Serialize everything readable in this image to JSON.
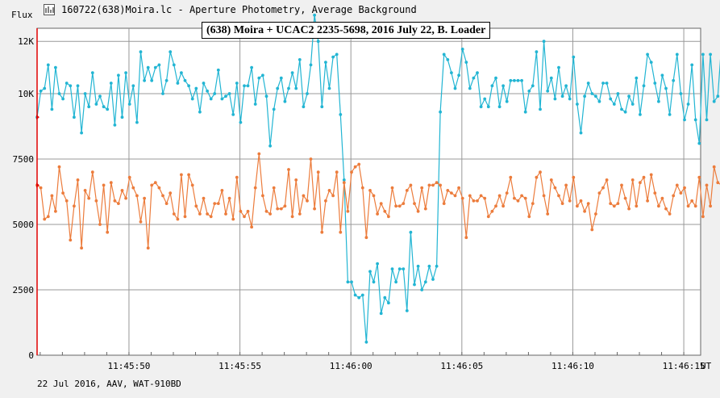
{
  "window": {
    "title": "160722(638)Moira.lc - Aperture Photometry, Average Background",
    "app_icon": "chart-icon"
  },
  "footer": {
    "note": "22 Jul 2016, AAV, WAT-910BD"
  },
  "colors": {
    "series_cyan": "#22b5d3",
    "series_orange": "#ec7c3c",
    "axis_marker": "#e00000",
    "grid": "#999999"
  },
  "chart_data": {
    "type": "line",
    "title": "(638) Moira + UCAC2 2235-5698, 2016 July 22, B. Loader",
    "y_unit": "Flux",
    "x_unit": "UT",
    "y_ticks": [
      0,
      2500,
      5000,
      7500,
      10000,
      12000
    ],
    "y_tick_labels": [
      "0",
      "2500",
      "5000",
      "7500",
      "10K",
      "12K"
    ],
    "ylim": [
      0,
      12500
    ],
    "x_ticks": [
      50,
      55,
      60,
      65,
      70,
      75
    ],
    "x_tick_labels": [
      "11:45:50",
      "11:45:55",
      "11:46:00",
      "11:46:05",
      "11:46:10",
      "11:46:15"
    ],
    "xlim": [
      45.86,
      75.76
    ],
    "x_start": 45.86,
    "x_step": 0.1667,
    "grid": true,
    "series": [
      {
        "values": [
          9100,
          10100,
          10200,
          11100,
          9400,
          11000,
          10000,
          9800,
          10400,
          10300,
          9100,
          10300,
          8500,
          10000,
          9500,
          10800,
          9600,
          9900,
          9500,
          9400,
          10400,
          8800,
          10700,
          9100,
          10800,
          9600,
          10300,
          8900,
          11600,
          10500,
          11000,
          10500,
          11000,
          11100,
          10000,
          10500,
          11600,
          11100,
          10400,
          10800,
          10500,
          10300,
          9800,
          10200,
          9300,
          10400,
          10100,
          9800,
          10000,
          10900,
          9800,
          9900,
          10000,
          9200,
          10400,
          8900,
          10300,
          10300,
          11000,
          9600,
          10600,
          10700,
          9900,
          8000,
          9400,
          10200,
          10600,
          9700,
          10200,
          10800,
          10200,
          11300,
          9500,
          10000,
          11100,
          13000,
          12000,
          9500,
          11200,
          10200,
          11400,
          11500,
          9200,
          6700,
          2800,
          2800,
          2300,
          2200,
          2300,
          500,
          3200,
          2800,
          3500,
          1600,
          2200,
          2000,
          3300,
          2800,
          3300,
          3300,
          1700,
          4700,
          2700,
          3400,
          2500,
          2800,
          3400,
          2900,
          3400,
          9300,
          11500,
          11300,
          10800,
          10200,
          10700,
          11700,
          11200,
          10200,
          10600,
          10800,
          9500,
          9800,
          9500,
          10300,
          10600,
          9500,
          10300,
          9700,
          10500,
          10500,
          10500,
          10500,
          9300,
          10100,
          10300,
          11600,
          9400,
          12000,
          10100,
          10600,
          9800,
          11000,
          9900,
          10300,
          9800,
          11400,
          9600,
          8500,
          9900,
          10400,
          10000,
          9900,
          9700,
          10400,
          10400,
          9800,
          9600,
          10000,
          9400,
          9300,
          9900,
          9600,
          10600,
          9200,
          10300,
          11500,
          11200,
          10400,
          9700,
          10700,
          10200,
          9200,
          10500,
          11500,
          10000,
          9000,
          9600,
          11100,
          9000,
          8100,
          11500,
          9000,
          11500,
          9700,
          9900,
          11900,
          10100,
          9400,
          9800,
          9200,
          9600,
          10100,
          8900,
          10400,
          10300,
          10200,
          9800,
          10100,
          10700,
          10600,
          9400,
          10000,
          9800,
          9700,
          8300,
          10300,
          8500,
          11500,
          10900,
          10100,
          9600,
          10300,
          8500,
          9600,
          9800,
          10000,
          10100,
          10800,
          9700,
          9300,
          9800,
          9800,
          10600,
          10500,
          9200,
          11300,
          9800,
          11600,
          10000,
          10900,
          9500,
          9300,
          10300,
          9700,
          10000,
          9800,
          9500,
          10000,
          10200,
          9500,
          10400,
          10400,
          10000,
          8800,
          10900,
          10500,
          9900,
          9200,
          8200,
          10000,
          10600,
          10000,
          9700,
          9400,
          8400,
          11300,
          11000,
          9700
        ]
      },
      {
        "values": [
          6500,
          6400,
          5200,
          5300,
          6100,
          5500,
          7200,
          6200,
          5900,
          4400,
          5700,
          6700,
          4100,
          6300,
          6000,
          7000,
          5900,
          5000,
          6500,
          4700,
          6600,
          5900,
          5800,
          6300,
          6000,
          6800,
          6400,
          6100,
          5100,
          6000,
          4100,
          6500,
          6600,
          6400,
          6100,
          5800,
          6200,
          5400,
          5200,
          6900,
          5300,
          6900,
          6500,
          5700,
          5400,
          6000,
          5400,
          5300,
          5800,
          5800,
          6300,
          5400,
          6000,
          5200,
          6800,
          5500,
          5300,
          5500,
          4900,
          6400,
          7700,
          6100,
          5500,
          5400,
          6400,
          5600,
          5600,
          5700,
          7100,
          5300,
          6700,
          5400,
          6100,
          5900,
          7500,
          5600,
          7000,
          4700,
          5900,
          6300,
          6100,
          7000,
          4700,
          6600,
          5500,
          7000,
          7200,
          7300,
          6400,
          4500,
          6300,
          6100,
          5400,
          5800,
          5500,
          5300,
          6400,
          5700,
          5700,
          5800,
          6300,
          6500,
          5800,
          5500,
          6400,
          5600,
          6500,
          6500,
          6600,
          6500,
          5800,
          6300,
          6200,
          6100,
          6400,
          6000,
          4500,
          6100,
          5900,
          5900,
          6100,
          6000,
          5300,
          5500,
          5700,
          6100,
          5700,
          6200,
          6800,
          6000,
          5900,
          6100,
          6000,
          5300,
          5800,
          6800,
          7000,
          6100,
          5400,
          6700,
          6400,
          6100,
          5800,
          6500,
          5900,
          6800,
          5700,
          5900,
          5500,
          5800,
          4800,
          5400,
          6200,
          6400,
          6700,
          5800,
          5700,
          5800,
          6500,
          6000,
          5600,
          6700,
          5700,
          6600,
          6800,
          5900,
          6900,
          6200,
          5700,
          6000,
          5600,
          5400,
          6100,
          6500,
          6200,
          6400,
          5700,
          5900,
          5700,
          6800,
          5300,
          6500,
          5700,
          7200,
          6600,
          6500,
          6100,
          5900,
          5100,
          6200,
          6200,
          6900,
          7000,
          6900,
          6200,
          5900,
          5500,
          6100,
          5500,
          6300,
          6300,
          5000,
          6500,
          5900,
          6600,
          6300,
          5300,
          6300,
          6200,
          5800,
          5800,
          5600,
          6900,
          6500,
          6100,
          6300,
          6500,
          6000,
          5400,
          6700,
          6400,
          5700,
          6600,
          6700,
          6800,
          6700,
          5400,
          4800,
          6400,
          5300,
          6100,
          5000,
          6000,
          6400,
          6200,
          5800,
          6000,
          6400,
          5600,
          6100,
          5700,
          5800,
          6100,
          7200,
          5500,
          5800,
          6200,
          5400,
          6200,
          6800,
          6100,
          5600,
          6900,
          5800,
          6200,
          6100,
          5500,
          5300,
          5200,
          5700,
          5000,
          5800
        ]
      }
    ]
  }
}
